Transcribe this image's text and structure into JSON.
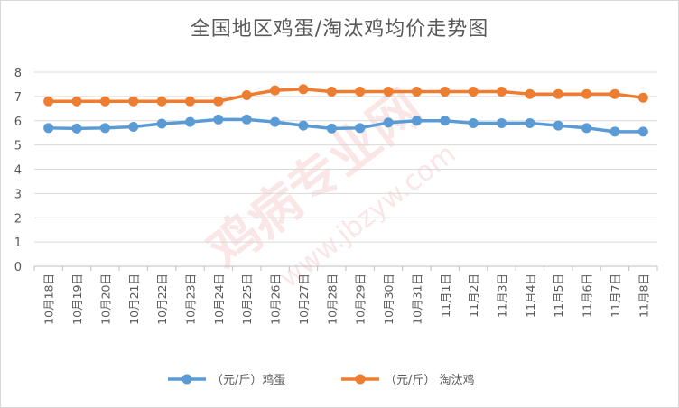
{
  "chart_data": {
    "type": "line",
    "title": "全国地区鸡蛋/淘汰鸡均价走势图",
    "categories": [
      "10月18日",
      "10月19日",
      "10月20日",
      "10月21日",
      "10月22日",
      "10月23日",
      "10月24日",
      "10月25日",
      "10月26日",
      "10月27日",
      "10月28日",
      "10月29日",
      "10月30日",
      "10月31日",
      "11月1日",
      "11月2日",
      "11月3日",
      "11月4日",
      "11月5日",
      "11月6日",
      "11月7日",
      "11月8日"
    ],
    "ylim": [
      0,
      8
    ],
    "yticks": [
      0,
      1,
      2,
      3,
      4,
      5,
      6,
      7,
      8
    ],
    "grid": true,
    "legend_position": "bottom",
    "series": [
      {
        "name": "（元/斤）鸡蛋",
        "color": "#5b9bd5",
        "values": [
          5.7,
          5.68,
          5.7,
          5.75,
          5.88,
          5.95,
          6.05,
          6.05,
          5.95,
          5.8,
          5.68,
          5.7,
          5.92,
          6.0,
          6.0,
          5.9,
          5.9,
          5.9,
          5.8,
          5.7,
          5.55,
          5.55
        ]
      },
      {
        "name": "（元/斤） 淘汰鸡",
        "color": "#ed7d31",
        "values": [
          6.8,
          6.8,
          6.8,
          6.8,
          6.8,
          6.8,
          6.8,
          7.05,
          7.25,
          7.3,
          7.2,
          7.2,
          7.2,
          7.2,
          7.2,
          7.2,
          7.2,
          7.1,
          7.1,
          7.1,
          7.1,
          6.95
        ]
      }
    ]
  },
  "watermark": {
    "text_main": "鸡病专业网",
    "text_url": "www.jbzyw.com"
  }
}
